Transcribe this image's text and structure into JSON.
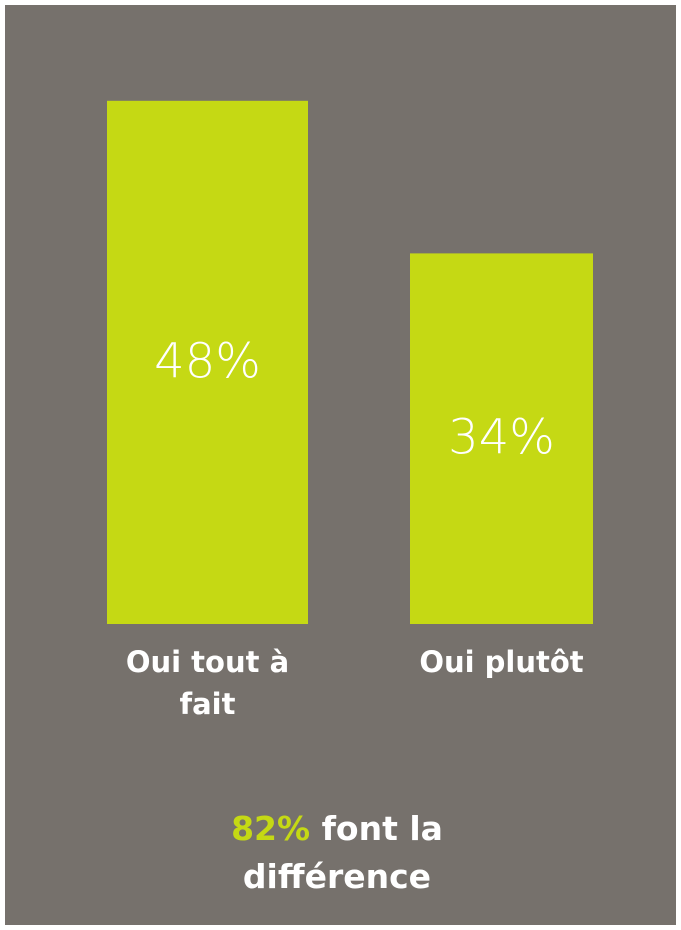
{
  "chart_data": {
    "type": "bar",
    "categories": [
      "Oui tout à fait",
      "Oui plutôt"
    ],
    "values": [
      48,
      34
    ],
    "value_labels": [
      "48%",
      "34%"
    ],
    "color": "#c5d914",
    "background": "#76716c",
    "annotation": {
      "highlight": "82%",
      "text": "font la différence"
    }
  }
}
